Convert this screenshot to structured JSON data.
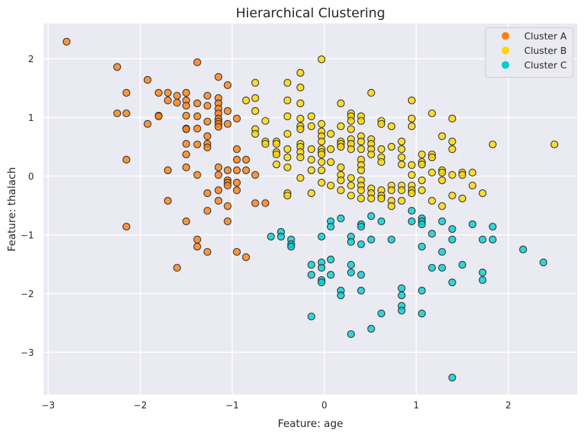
{
  "chart_data": {
    "type": "scatter",
    "title": "Hierarchical Clustering",
    "xlabel": "Feature: age",
    "ylabel": "Feature: thalach",
    "xlim": [
      -3.05,
      2.75
    ],
    "ylim": [
      -3.72,
      2.6
    ],
    "xticks": [
      -3,
      -2,
      -1,
      0,
      1,
      2
    ],
    "yticks": [
      -3,
      -2,
      -1,
      0,
      1,
      2
    ],
    "xtick_labels": [
      "−3",
      "−2",
      "−1",
      "0",
      "1",
      "2"
    ],
    "ytick_labels": [
      "−3",
      "−2",
      "−1",
      "0",
      "1",
      "2"
    ],
    "grid": true,
    "background": "#eaeaf2",
    "legend_position": "top-right",
    "series": [
      {
        "name": "Cluster A",
        "color": "#ff7f0e",
        "points": [
          [
            -2.8,
            2.29
          ],
          [
            -2.25,
            1.86
          ],
          [
            -2.25,
            1.07
          ],
          [
            -2.15,
            1.42
          ],
          [
            -2.15,
            1.07
          ],
          [
            -2.15,
            0.28
          ],
          [
            -2.15,
            -0.86
          ],
          [
            -1.92,
            1.64
          ],
          [
            -1.92,
            0.89
          ],
          [
            -1.8,
            1.42
          ],
          [
            -1.8,
            1.03
          ],
          [
            -1.8,
            1.02
          ],
          [
            -1.7,
            1.42
          ],
          [
            -1.7,
            1.29
          ],
          [
            -1.7,
            0.1
          ],
          [
            -1.7,
            -0.42
          ],
          [
            -1.6,
            1.37
          ],
          [
            -1.6,
            1.25
          ],
          [
            -1.6,
            -1.56
          ],
          [
            -1.5,
            1.42
          ],
          [
            -1.5,
            1.29
          ],
          [
            -1.5,
            1.2
          ],
          [
            -1.5,
            1.03
          ],
          [
            -1.5,
            0.81
          ],
          [
            -1.5,
            0.8
          ],
          [
            -1.5,
            0.55
          ],
          [
            -1.5,
            0.37
          ],
          [
            -1.5,
            0.15
          ],
          [
            -1.5,
            -0.77
          ],
          [
            -1.38,
            1.94
          ],
          [
            -1.38,
            1.24
          ],
          [
            -1.38,
            1.02
          ],
          [
            -1.38,
            0.81
          ],
          [
            -1.38,
            0.54
          ],
          [
            -1.38,
            0.02
          ],
          [
            -1.38,
            -1.08
          ],
          [
            -1.38,
            -1.2
          ],
          [
            -1.27,
            1.37
          ],
          [
            -1.27,
            1.2
          ],
          [
            -1.27,
            0.93
          ],
          [
            -1.27,
            0.68
          ],
          [
            -1.27,
            0.55
          ],
          [
            -1.27,
            0.49
          ],
          [
            -1.27,
            -0.29
          ],
          [
            -1.27,
            -0.59
          ],
          [
            -1.27,
            -1.29
          ],
          [
            -1.15,
            1.69
          ],
          [
            -1.15,
            1.33
          ],
          [
            -1.15,
            1.24
          ],
          [
            -1.15,
            1.15
          ],
          [
            -1.15,
            1.07
          ],
          [
            -1.15,
            0.98
          ],
          [
            -1.15,
            0.93
          ],
          [
            -1.15,
            0.89
          ],
          [
            -1.15,
            0.84
          ],
          [
            -1.15,
            0.15
          ],
          [
            -1.15,
            0.02
          ],
          [
            -1.15,
            -0.24
          ],
          [
            -1.15,
            -0.42
          ],
          [
            -1.05,
            1.55
          ],
          [
            -1.05,
            1.11
          ],
          [
            -1.05,
            0.89
          ],
          [
            -1.05,
            0.1
          ],
          [
            -1.05,
            -0.07
          ],
          [
            -1.05,
            -0.11
          ],
          [
            -1.05,
            -0.16
          ],
          [
            -1.05,
            -0.51
          ],
          [
            -1.05,
            -0.77
          ],
          [
            -0.95,
            0.98
          ],
          [
            -0.95,
            0.46
          ],
          [
            -0.95,
            0.28
          ],
          [
            -0.95,
            0.1
          ],
          [
            -0.95,
            -0.11
          ],
          [
            -0.95,
            -0.24
          ],
          [
            -0.95,
            -1.29
          ],
          [
            -0.85,
            0.28
          ],
          [
            -0.85,
            0.1
          ],
          [
            -0.85,
            -1.38
          ],
          [
            -0.75,
            0.02
          ],
          [
            -0.75,
            -0.46
          ],
          [
            -0.64,
            -0.46
          ]
        ]
      },
      {
        "name": "Cluster B",
        "color": "#ffd700",
        "points": [
          [
            -0.85,
            1.29
          ],
          [
            -0.75,
            1.59
          ],
          [
            -0.75,
            1.33
          ],
          [
            -0.75,
            1.11
          ],
          [
            -0.75,
            0.8
          ],
          [
            -0.75,
            0.72
          ],
          [
            -0.64,
            0.94
          ],
          [
            -0.64,
            0.59
          ],
          [
            -0.64,
            0.55
          ],
          [
            -0.52,
            0.59
          ],
          [
            -0.52,
            0.55
          ],
          [
            -0.52,
            0.41
          ],
          [
            -0.52,
            0.37
          ],
          [
            -0.52,
            0.2
          ],
          [
            -0.4,
            1.59
          ],
          [
            -0.4,
            1.29
          ],
          [
            -0.4,
            1.02
          ],
          [
            -0.4,
            0.72
          ],
          [
            -0.4,
            0.46
          ],
          [
            -0.4,
            0.32
          ],
          [
            -0.4,
            0.15
          ],
          [
            -0.4,
            -0.29
          ],
          [
            -0.4,
            -0.33
          ],
          [
            -0.26,
            1.76
          ],
          [
            -0.26,
            1.51
          ],
          [
            -0.26,
            1.24
          ],
          [
            -0.26,
            0.98
          ],
          [
            -0.26,
            0.85
          ],
          [
            -0.26,
            0.8
          ],
          [
            -0.26,
            0.55
          ],
          [
            -0.26,
            0.5
          ],
          [
            -0.26,
            0.41
          ],
          [
            -0.26,
            0.32
          ],
          [
            -0.26,
            -0.03
          ],
          [
            -0.14,
            1.02
          ],
          [
            -0.14,
            0.85
          ],
          [
            -0.14,
            0.46
          ],
          [
            -0.14,
            0.28
          ],
          [
            -0.14,
            0.1
          ],
          [
            -0.14,
            -0.29
          ],
          [
            -0.03,
            1.99
          ],
          [
            -0.03,
            0.89
          ],
          [
            -0.03,
            0.76
          ],
          [
            -0.03,
            0.68
          ],
          [
            -0.03,
            0.59
          ],
          [
            -0.03,
            0.46
          ],
          [
            -0.03,
            0.41
          ],
          [
            -0.03,
            0.37
          ],
          [
            -0.03,
            0.24
          ],
          [
            -0.03,
            0.1
          ],
          [
            -0.03,
            -0.11
          ],
          [
            0.07,
            0.72
          ],
          [
            0.07,
            0.46
          ],
          [
            0.07,
            0.24
          ],
          [
            0.07,
            -0.16
          ],
          [
            0.18,
            1.24
          ],
          [
            0.18,
            0.85
          ],
          [
            0.18,
            0.59
          ],
          [
            0.18,
            0.55
          ],
          [
            0.18,
            0.5
          ],
          [
            0.18,
            0.15
          ],
          [
            0.18,
            0.02
          ],
          [
            0.18,
            -0.07
          ],
          [
            0.18,
            -0.24
          ],
          [
            0.29,
            1.07
          ],
          [
            0.29,
            1.02
          ],
          [
            0.29,
            0.94
          ],
          [
            0.29,
            0.8
          ],
          [
            0.29,
            0.63
          ],
          [
            0.29,
            0.55
          ],
          [
            0.29,
            0.46
          ],
          [
            0.29,
            -0.03
          ],
          [
            0.29,
            -0.16
          ],
          [
            0.29,
            -0.33
          ],
          [
            0.4,
            1.02
          ],
          [
            0.4,
            0.94
          ],
          [
            0.4,
            0.68
          ],
          [
            0.4,
            0.59
          ],
          [
            0.4,
            0.46
          ],
          [
            0.4,
            0.28
          ],
          [
            0.4,
            0.19
          ],
          [
            0.4,
            0.1
          ],
          [
            0.4,
            -0.07
          ],
          [
            0.4,
            -0.16
          ],
          [
            0.4,
            -0.24
          ],
          [
            0.4,
            -0.38
          ],
          [
            0.51,
            1.42
          ],
          [
            0.51,
            0.63
          ],
          [
            0.51,
            0.55
          ],
          [
            0.51,
            0.46
          ],
          [
            0.51,
            0.37
          ],
          [
            0.51,
            -0.21
          ],
          [
            0.51,
            -0.29
          ],
          [
            0.51,
            -0.38
          ],
          [
            0.62,
            0.94
          ],
          [
            0.62,
            0.89
          ],
          [
            0.62,
            0.46
          ],
          [
            0.62,
            0.32
          ],
          [
            0.62,
            0.24
          ],
          [
            0.62,
            -0.24
          ],
          [
            0.62,
            -0.33
          ],
          [
            0.62,
            -0.38
          ],
          [
            0.73,
            0.85
          ],
          [
            0.73,
            0.5
          ],
          [
            0.73,
            -0.16
          ],
          [
            0.73,
            -0.24
          ],
          [
            0.73,
            -0.42
          ],
          [
            0.73,
            -0.51
          ],
          [
            0.84,
            0.59
          ],
          [
            0.84,
            0.46
          ],
          [
            0.84,
            0.32
          ],
          [
            0.84,
            0.2
          ],
          [
            0.84,
            -0.16
          ],
          [
            0.84,
            -0.24
          ],
          [
            0.84,
            -0.42
          ],
          [
            0.95,
            1.29
          ],
          [
            0.95,
            0.98
          ],
          [
            0.95,
            0.85
          ],
          [
            0.95,
            0.19
          ],
          [
            0.95,
            0.02
          ],
          [
            0.95,
            -0.16
          ],
          [
            0.95,
            -0.24
          ],
          [
            0.95,
            -0.29
          ],
          [
            1.06,
            0.37
          ],
          [
            1.06,
            0.24
          ],
          [
            1.06,
            0.2
          ],
          [
            1.06,
            -0.07
          ],
          [
            1.06,
            -0.24
          ],
          [
            1.17,
            1.07
          ],
          [
            1.17,
            0.37
          ],
          [
            1.17,
            0.32
          ],
          [
            1.17,
            0.06
          ],
          [
            1.17,
            -0.42
          ],
          [
            1.28,
            0.68
          ],
          [
            1.28,
            0.1
          ],
          [
            1.28,
            0.06
          ],
          [
            1.28,
            -0.07
          ],
          [
            1.28,
            -0.51
          ],
          [
            1.39,
            0.98
          ],
          [
            1.39,
            0.59
          ],
          [
            1.39,
            0.46
          ],
          [
            1.39,
            0.02
          ],
          [
            1.39,
            -0.33
          ],
          [
            1.5,
            0.06
          ],
          [
            1.5,
            0.02
          ],
          [
            1.5,
            -0.38
          ],
          [
            1.61,
            0.06
          ],
          [
            1.61,
            -0.16
          ],
          [
            1.72,
            -0.29
          ],
          [
            1.83,
            0.54
          ],
          [
            2.5,
            0.54
          ]
        ]
      },
      {
        "name": "Cluster C",
        "color": "#00ced1",
        "points": [
          [
            -0.58,
            -1.03
          ],
          [
            -0.47,
            -0.95
          ],
          [
            -0.47,
            -1.03
          ],
          [
            -0.36,
            -1.08
          ],
          [
            -0.36,
            -1.16
          ],
          [
            -0.36,
            -1.2
          ],
          [
            -0.14,
            -1.51
          ],
          [
            -0.14,
            -1.68
          ],
          [
            -0.14,
            -2.39
          ],
          [
            -0.03,
            -1.03
          ],
          [
            -0.03,
            -1.47
          ],
          [
            -0.03,
            -1.56
          ],
          [
            -0.03,
            -1.77
          ],
          [
            -0.03,
            -1.81
          ],
          [
            0.07,
            -0.77
          ],
          [
            0.07,
            -0.86
          ],
          [
            0.07,
            -1.42
          ],
          [
            0.07,
            -1.68
          ],
          [
            0.18,
            -0.72
          ],
          [
            0.18,
            -1.95
          ],
          [
            0.18,
            -2.03
          ],
          [
            0.29,
            -1.03
          ],
          [
            0.29,
            -1.12
          ],
          [
            0.29,
            -1.51
          ],
          [
            0.29,
            -1.64
          ],
          [
            0.29,
            -2.69
          ],
          [
            0.4,
            -0.82
          ],
          [
            0.4,
            -0.86
          ],
          [
            0.4,
            -1.16
          ],
          [
            0.4,
            -1.68
          ],
          [
            0.4,
            -1.95
          ],
          [
            0.51,
            -0.68
          ],
          [
            0.51,
            -1.08
          ],
          [
            0.51,
            -2.6
          ],
          [
            0.62,
            -0.77
          ],
          [
            0.62,
            -2.34
          ],
          [
            0.73,
            -1.08
          ],
          [
            0.84,
            -1.91
          ],
          [
            0.84,
            -2.03
          ],
          [
            0.84,
            -2.21
          ],
          [
            0.84,
            -2.29
          ],
          [
            0.95,
            -0.59
          ],
          [
            0.95,
            -0.77
          ],
          [
            1.06,
            -0.72
          ],
          [
            1.06,
            -0.77
          ],
          [
            1.06,
            -0.82
          ],
          [
            1.06,
            -1.2
          ],
          [
            1.06,
            -1.95
          ],
          [
            1.06,
            -2.34
          ],
          [
            1.17,
            -0.98
          ],
          [
            1.17,
            -1.56
          ],
          [
            1.28,
            -0.77
          ],
          [
            1.28,
            -1.29
          ],
          [
            1.28,
            -1.56
          ],
          [
            1.39,
            -0.9
          ],
          [
            1.39,
            -1.08
          ],
          [
            1.39,
            -1.81
          ],
          [
            1.39,
            -3.43
          ],
          [
            1.5,
            -1.51
          ],
          [
            1.61,
            -0.82
          ],
          [
            1.72,
            -1.08
          ],
          [
            1.72,
            -1.64
          ],
          [
            1.72,
            -1.77
          ],
          [
            1.83,
            -0.86
          ],
          [
            1.83,
            -1.08
          ],
          [
            2.16,
            -1.25
          ],
          [
            2.38,
            -1.47
          ]
        ]
      }
    ]
  }
}
